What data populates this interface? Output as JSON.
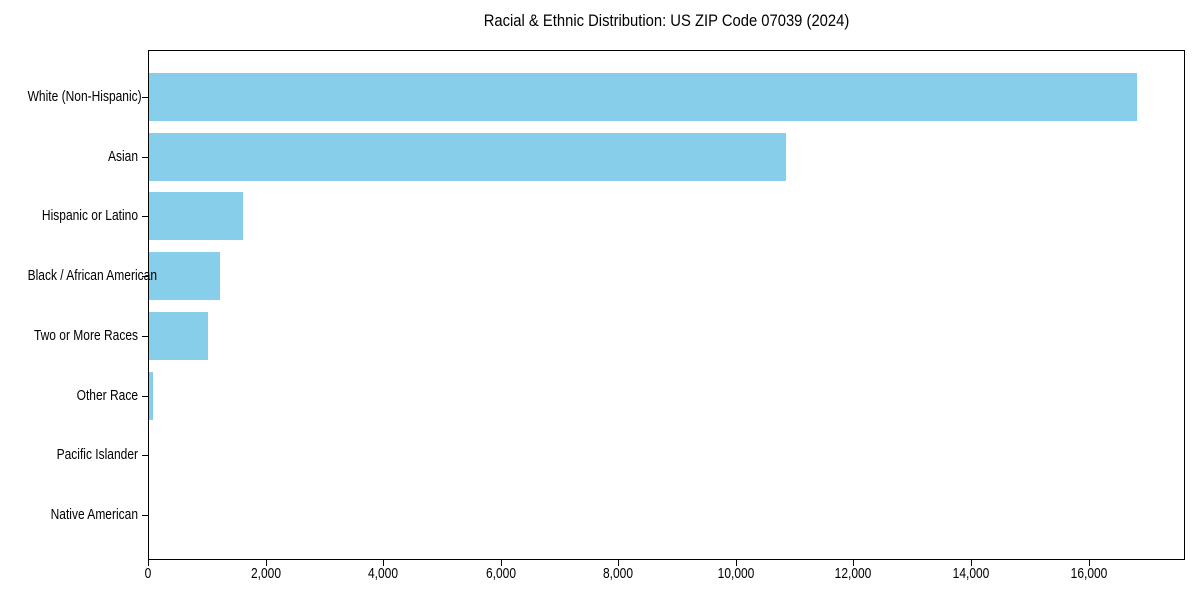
{
  "chart_data": {
    "type": "bar",
    "orientation": "horizontal",
    "title": "Racial & Ethnic Distribution: US ZIP Code 07039 (2024)",
    "categories": [
      "White (Non-Hispanic)",
      "Asian",
      "Hispanic or Latino",
      "Black / African American",
      "Two or More Races",
      "Other Race",
      "Pacific Islander",
      "Native American"
    ],
    "values": [
      16800,
      10840,
      1600,
      1210,
      1000,
      75,
      0,
      0
    ],
    "xlabel": "",
    "ylabel": "",
    "xlim": [
      0,
      17640
    ],
    "xtick_values": [
      0,
      2000,
      4000,
      6000,
      8000,
      10000,
      12000,
      14000,
      16000
    ],
    "xtick_labels": [
      "0",
      "2,000",
      "4,000",
      "6,000",
      "8,000",
      "10,000",
      "12,000",
      "14,000",
      "16,000"
    ],
    "bar_color": "#87CEEB",
    "axis_color": "#000000",
    "text_color": "#000000",
    "grid": false,
    "legend": "none"
  }
}
